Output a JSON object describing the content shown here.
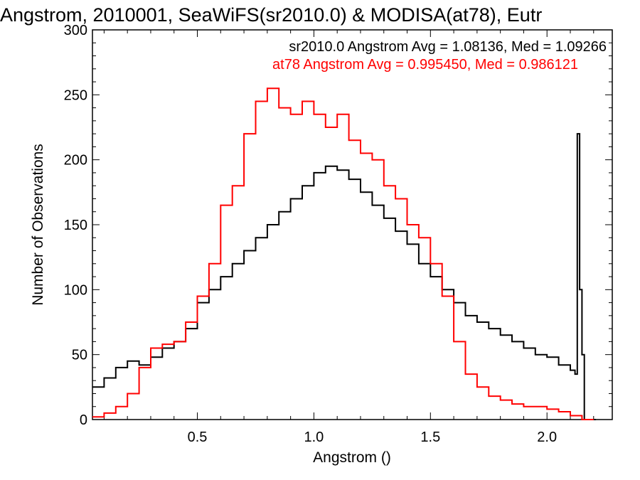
{
  "chart_data": {
    "type": "histogram-step",
    "title": "Angstrom, 2010001, SeaWiFS(sr2010.0) & MODISA(at78), Eutr",
    "xlabel": "Angstrom ()",
    "ylabel": "Number of Observations",
    "xlim": [
      0.05,
      2.28
    ],
    "ylim": [
      0,
      300
    ],
    "x_ticks": [
      "0.5",
      "1.0",
      "1.5",
      "2.0"
    ],
    "x_tick_values": [
      0.5,
      1.0,
      1.5,
      2.0
    ],
    "y_ticks": [
      "0",
      "50",
      "100",
      "150",
      "200",
      "250",
      "300"
    ],
    "y_tick_values": [
      0,
      50,
      100,
      150,
      200,
      250,
      300
    ],
    "legend_placement": "top-right",
    "series": [
      {
        "name": "sr2010.0",
        "legend_text": "sr2010.0 Angstrom Avg = 1.08136, Med = 1.09266",
        "color": "#000000",
        "x": [
          0.05,
          0.1,
          0.15,
          0.2,
          0.25,
          0.3,
          0.35,
          0.4,
          0.45,
          0.5,
          0.55,
          0.6,
          0.65,
          0.7,
          0.75,
          0.8,
          0.85,
          0.9,
          0.95,
          1.0,
          1.05,
          1.1,
          1.15,
          1.2,
          1.25,
          1.3,
          1.35,
          1.4,
          1.45,
          1.5,
          1.55,
          1.6,
          1.65,
          1.7,
          1.75,
          1.8,
          1.85,
          1.9,
          1.95,
          2.0,
          2.05,
          2.1,
          2.12,
          2.13,
          2.14,
          2.15,
          2.16
        ],
        "y": [
          25,
          32,
          40,
          45,
          42,
          48,
          55,
          60,
          70,
          90,
          100,
          110,
          120,
          130,
          140,
          150,
          160,
          170,
          180,
          190,
          195,
          192,
          185,
          175,
          165,
          155,
          145,
          135,
          120,
          110,
          100,
          90,
          80,
          75,
          70,
          65,
          60,
          55,
          50,
          48,
          42,
          38,
          35,
          220,
          100,
          50,
          0
        ]
      },
      {
        "name": "at78",
        "legend_text": "at78 Angstrom Avg = 0.995450, Med = 0.986121",
        "color": "#ff0000",
        "x": [
          0.05,
          0.1,
          0.15,
          0.2,
          0.25,
          0.3,
          0.35,
          0.4,
          0.45,
          0.5,
          0.55,
          0.6,
          0.65,
          0.7,
          0.75,
          0.8,
          0.85,
          0.9,
          0.95,
          1.0,
          1.05,
          1.1,
          1.15,
          1.2,
          1.25,
          1.3,
          1.35,
          1.4,
          1.45,
          1.5,
          1.55,
          1.6,
          1.65,
          1.7,
          1.75,
          1.8,
          1.85,
          1.9,
          1.95,
          2.0,
          2.05,
          2.1,
          2.15
        ],
        "y": [
          2,
          5,
          10,
          20,
          40,
          55,
          58,
          60,
          75,
          95,
          120,
          165,
          180,
          220,
          245,
          255,
          240,
          235,
          245,
          235,
          225,
          235,
          215,
          205,
          200,
          180,
          170,
          150,
          140,
          120,
          95,
          60,
          35,
          25,
          18,
          15,
          12,
          10,
          10,
          8,
          6,
          3,
          0
        ]
      }
    ]
  }
}
